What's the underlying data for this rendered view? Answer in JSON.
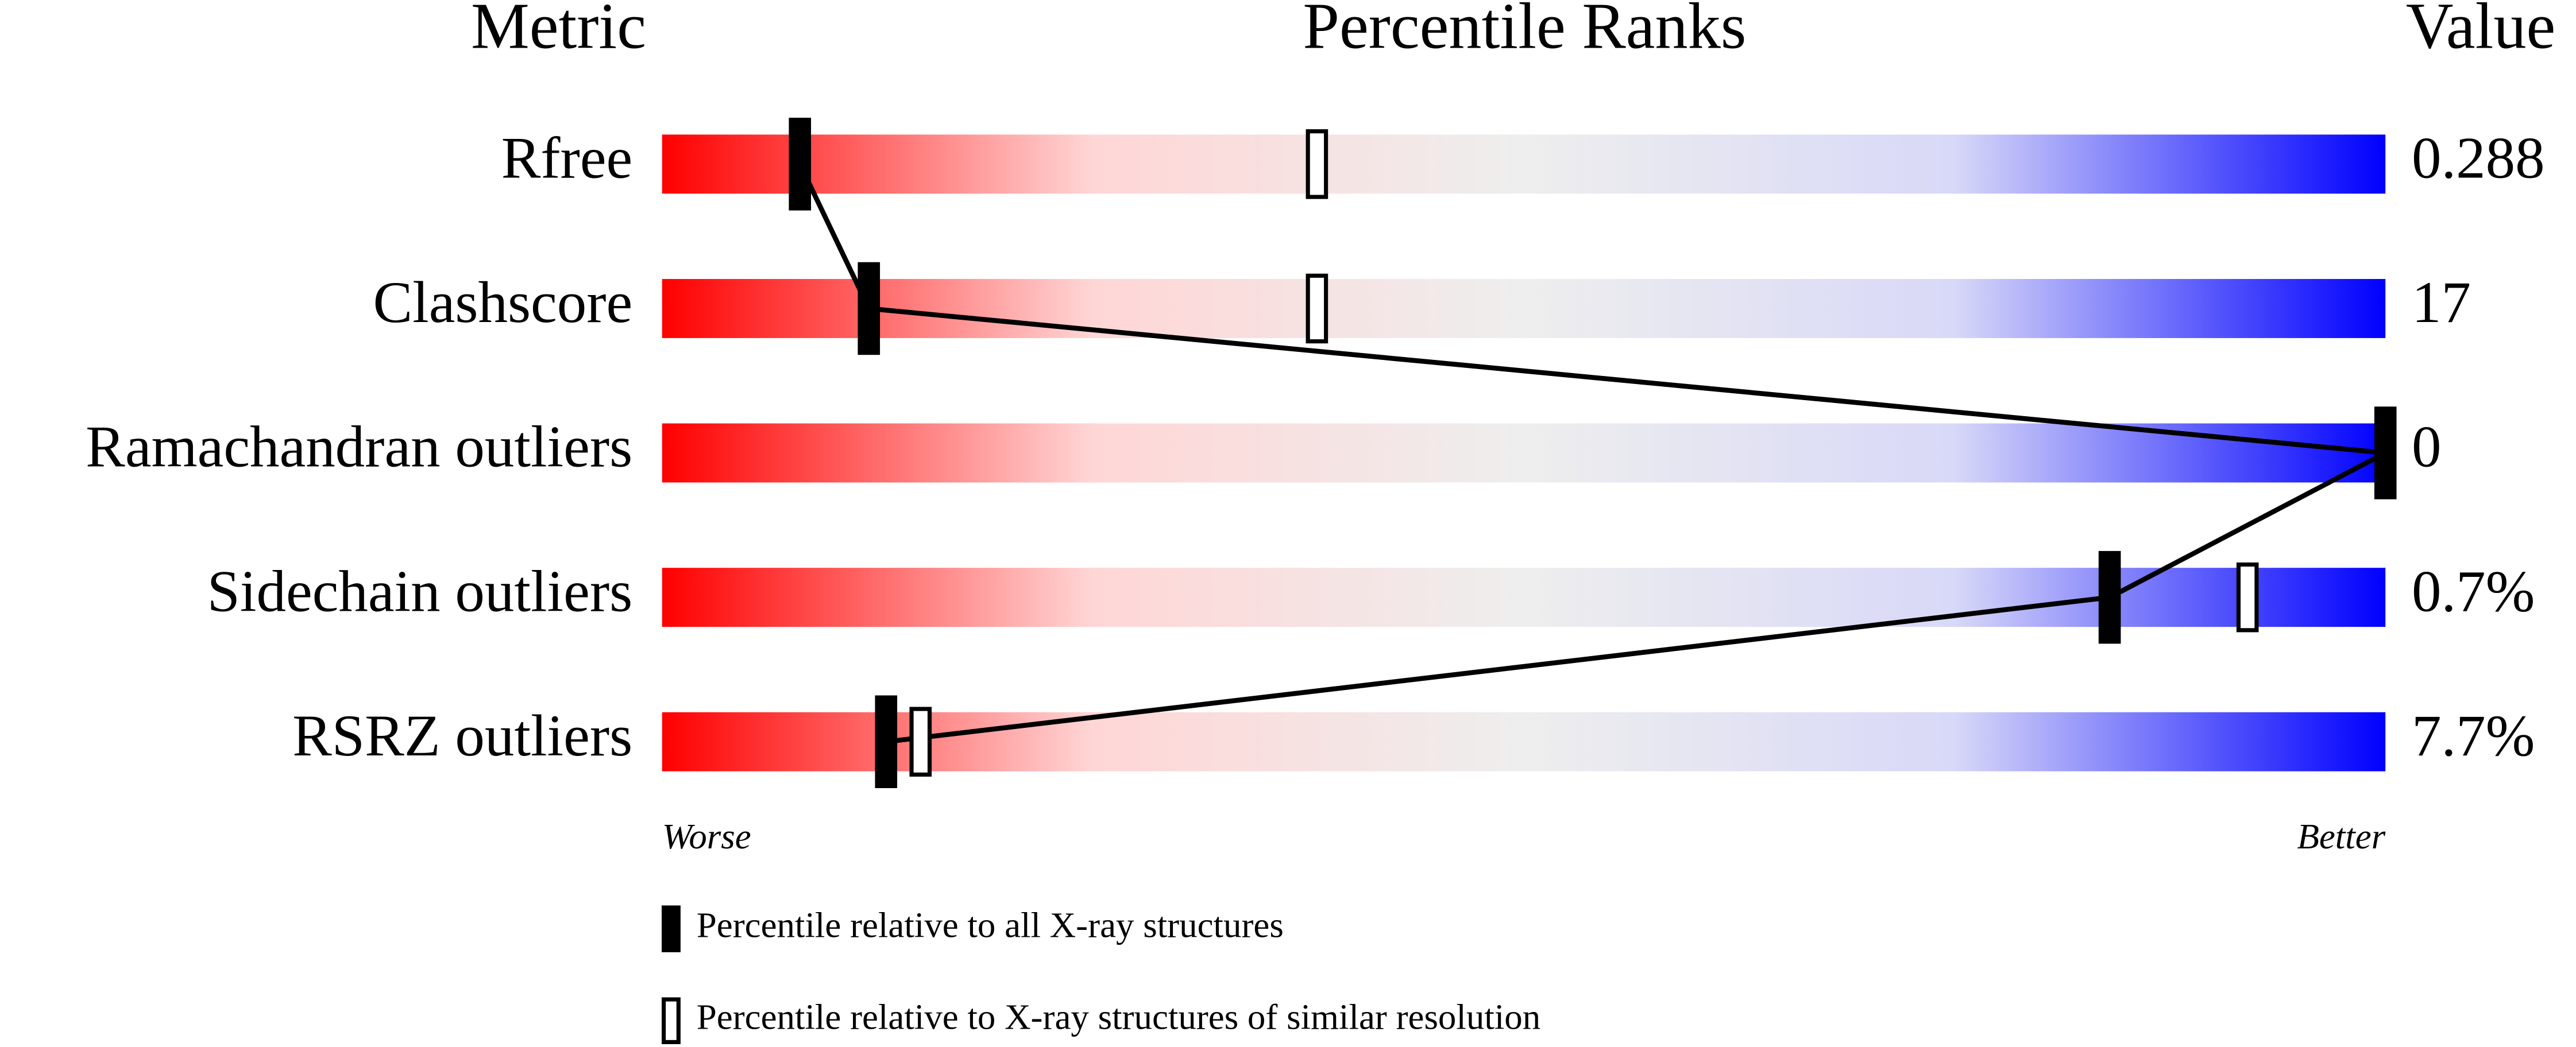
{
  "chart_data": {
    "type": "percentile_slider",
    "headers": [
      "Metric",
      "Percentile Ranks",
      "Value"
    ],
    "categories": [
      "Rfree",
      "Clashscore",
      "Ramachandran outliers",
      "Sidechain outliers",
      "RSRZ outliers"
    ],
    "metric_values": [
      "0.288",
      "17",
      "0",
      "0.7%",
      "7.7%"
    ],
    "series": [
      {
        "name": "Percentile relative to all X-ray structures",
        "color": "#000000",
        "filled": true,
        "values": [
          8,
          12,
          100,
          84,
          13
        ]
      },
      {
        "name": "Percentile relative to X-ray structures of similar resolution",
        "color": "#000000",
        "filled": false,
        "values": [
          38,
          38,
          null,
          92,
          15
        ]
      }
    ],
    "xlim": [
      0,
      100
    ],
    "left_label": "Worse",
    "right_label": "Better",
    "gradient": [
      "#ff0000",
      "#ffd6d6",
      "#eeeeee",
      "#d8d8f8",
      "#0000ff"
    ]
  }
}
